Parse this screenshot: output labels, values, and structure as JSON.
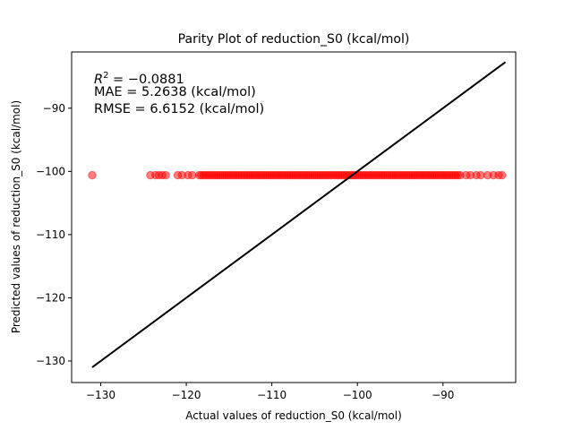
{
  "chart_data": {
    "type": "scatter",
    "title": "Parity Plot of reduction_S0 (kcal/mol)",
    "xlabel": "Actual values of reduction_S0 (kcal/mol)",
    "ylabel": "Predicted values of reduction_S0 (kcal/mol)",
    "xlim": [
      -133.4,
      -81.5
    ],
    "ylim": [
      -133.4,
      -81.1
    ],
    "xticks": [
      -130,
      -120,
      -110,
      -100,
      -90
    ],
    "yticks": [
      -130,
      -120,
      -110,
      -100,
      -90
    ],
    "xtick_labels": [
      "−130",
      "−120",
      "−110",
      "−100",
      "−90"
    ],
    "ytick_labels": [
      "−130",
      "−120",
      "−110",
      "−100",
      "−90"
    ],
    "grid": false,
    "point_color": "#ff0000",
    "line_color": "#000000",
    "parity_line": {
      "x": [
        -131.0,
        -82.7
      ],
      "y": [
        -131.0,
        -82.7
      ]
    },
    "points": {
      "predicted_value": -100.6,
      "actual_values_sparse": [
        -131.0,
        -124.2,
        -123.6,
        -123.2,
        -122.8,
        -122.4,
        -121.0,
        -120.5,
        -119.8,
        -119.3,
        -87.3,
        -86.8,
        -86.1,
        -85.6,
        -84.8,
        -84.1,
        -83.5,
        -83.1
      ],
      "actual_dense_range": [
        -118.5,
        -88.0
      ],
      "actual_dense_step": 0.25
    },
    "annotations": {
      "r2_prefix": "R",
      "r2_sup": "2",
      "r2_value": " = −0.0881",
      "mae": "MAE = 5.2638 (kcal/mol)",
      "rmse": "RMSE = 6.6152 (kcal/mol)"
    }
  }
}
